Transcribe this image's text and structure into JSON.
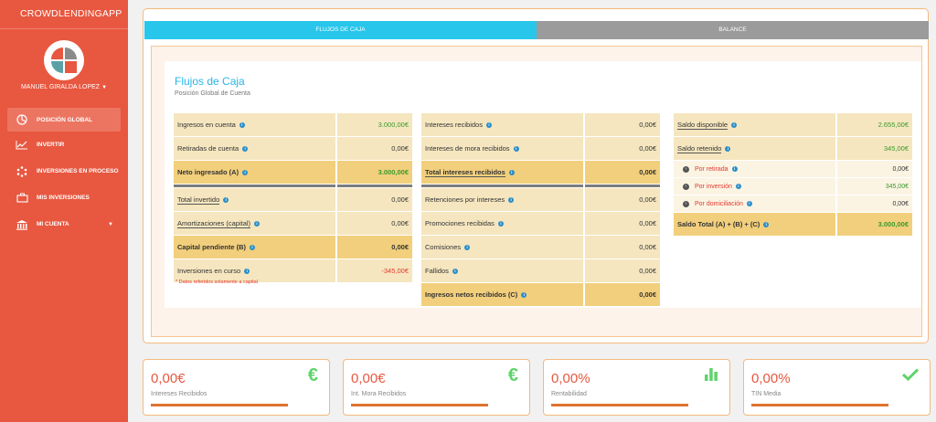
{
  "app": {
    "brand": "CROWDLENDINGAPP",
    "user": "MANUEL GIRALDA LOPEZ"
  },
  "nav": [
    {
      "label": "POSICIÓN GLOBAL",
      "icon": "pie-chart-icon"
    },
    {
      "label": "INVERTIR",
      "icon": "line-chart-icon"
    },
    {
      "label": "INVERSIONES EN PROCESO",
      "icon": "spinner-icon"
    },
    {
      "label": "MIS INVERSIONES",
      "icon": "briefcase-icon"
    },
    {
      "label": "MI CUENTA",
      "icon": "bank-icon"
    }
  ],
  "tabs": {
    "active": "FLUJOS DE CAJA",
    "inactive": "BALANCE"
  },
  "card": {
    "title": "Flujos de Caja",
    "subtitle": "Posición Global de Cuenta"
  },
  "col1": [
    {
      "label": "Ingresos en cuenta",
      "value": "3.000,00€"
    },
    {
      "label": "Retiradas de cuenta",
      "value": "0,00€"
    },
    {
      "label": "Neto ingresado (A)",
      "value": "3.000,00€"
    },
    {
      "label": "Total invertido",
      "value": "0,00€"
    },
    {
      "label": "Amortizaciones (capital)",
      "value": "0,00€"
    },
    {
      "label": "Capital pendiente (B)",
      "value": "0,00€"
    },
    {
      "label": "Inversiones en curso",
      "value": "-345,00€"
    }
  ],
  "col1_note": "* Datos referidos solamente a capital",
  "col2": [
    {
      "label": "Intereses recibidos",
      "value": "0,00€"
    },
    {
      "label": "Intereses de mora recibidos",
      "value": "0,00€"
    },
    {
      "label": "Total intereses recibidos",
      "value": "0,00€"
    },
    {
      "label": "Retenciones por intereses",
      "value": "0,00€"
    },
    {
      "label": "Promociones recibidas",
      "value": "0,00€"
    },
    {
      "label": "Comisiones",
      "value": "0,00€"
    },
    {
      "label": "Fallidos",
      "value": "0,00€"
    },
    {
      "label": "Ingresos netos recibidos (C)",
      "value": "0,00€"
    }
  ],
  "col3": [
    {
      "label": "Saldo disponible",
      "value": "2.655,00€"
    },
    {
      "label": "Saldo retenido",
      "value": "345,00€"
    },
    {
      "label": "Por retirada",
      "value": "0,00€"
    },
    {
      "label": "Por inversión",
      "value": "345,00€"
    },
    {
      "label": "Por domiciliación",
      "value": "0,00€"
    },
    {
      "label": "Saldo Total (A) + (B) + (C)",
      "value": "3.000,00€"
    }
  ],
  "stats": [
    {
      "value": "0,00€",
      "label": "Intereses Recibidos",
      "icon": "euro-icon"
    },
    {
      "value": "0,00€",
      "label": "Int. Mora Recibidos",
      "icon": "euro-icon"
    },
    {
      "value": "0,00%",
      "label": "Rentabilidad",
      "icon": "bar-chart-icon"
    },
    {
      "value": "0,00%",
      "label": "TIN Media",
      "icon": "check-icon"
    }
  ],
  "colors": {
    "sidebar": "#e8573f",
    "tab_active": "#28c6ea",
    "tab_inactive": "#9b9b9b",
    "positive": "#3a9a2c",
    "negative": "#e2382f"
  }
}
